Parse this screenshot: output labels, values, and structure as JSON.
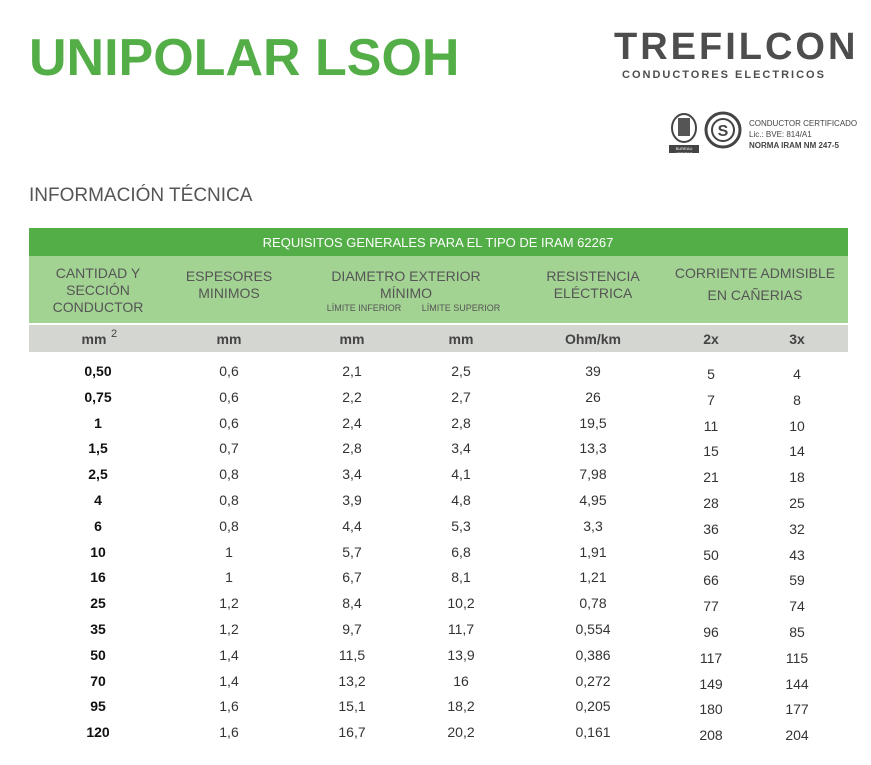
{
  "header": {
    "title": "UNIPOLAR LSOH"
  },
  "logo": {
    "brand": "TREFILCON",
    "tagline": "CONDUCTORES ELECTRICOS"
  },
  "certification": {
    "badge": "BUREAU VERITAS",
    "lines": [
      "CONDUCTOR CERTIFICADO",
      "Lic.: BVE: 814/A1",
      "NORMA IRAM NM 247-5"
    ]
  },
  "section": "INFORMACIÓN TÉCNICA",
  "table": {
    "caption": "REQUISITOS GENERALES PARA EL TIPO DE IRAM 62267",
    "headers": {
      "section": [
        "CANTIDAD Y",
        "SECCIÓN",
        "CONDUCTOR"
      ],
      "thickness": [
        "ESPESORES",
        "MINIMOS"
      ],
      "diameter": [
        "DIAMETRO EXTERIOR",
        "MÍNIMO"
      ],
      "diameter_sub": [
        "LÍMITE INFERIOR",
        "LÍMITE SUPERIOR"
      ],
      "resistance": [
        "RESISTENCIA",
        "ELÉCTRICA"
      ],
      "current": [
        "CORRIENTE ADMISIBLE",
        "EN CAÑERIAS"
      ]
    },
    "units": [
      "mm",
      "mm",
      "mm",
      "mm",
      "Ohm/km",
      "2x",
      "3x"
    ],
    "unit_superscript": "2",
    "rows": [
      [
        "0,50",
        "0,6",
        "2,1",
        "2,5",
        "39",
        "5",
        "4"
      ],
      [
        "0,75",
        "0,6",
        "2,2",
        "2,7",
        "26",
        "7",
        "8"
      ],
      [
        "1",
        "0,6",
        "2,4",
        "2,8",
        "19,5",
        "11",
        "10"
      ],
      [
        "1,5",
        "0,7",
        "2,8",
        "3,4",
        "13,3",
        "15",
        "14"
      ],
      [
        "2,5",
        "0,8",
        "3,4",
        "4,1",
        "7,98",
        "21",
        "18"
      ],
      [
        "4",
        "0,8",
        "3,9",
        "4,8",
        "4,95",
        "28",
        "25"
      ],
      [
        "6",
        "0,8",
        "4,4",
        "5,3",
        "3,3",
        "36",
        "32"
      ],
      [
        "10",
        "1",
        "5,7",
        "6,8",
        "1,91",
        "50",
        "43"
      ],
      [
        "16",
        "1",
        "6,7",
        "8,1",
        "1,21",
        "66",
        "59"
      ],
      [
        "25",
        "1,2",
        "8,4",
        "10,2",
        "0,78",
        "77",
        "74"
      ],
      [
        "35",
        "1,2",
        "9,7",
        "11,7",
        "0,554",
        "96",
        "85"
      ],
      [
        "50",
        "1,4",
        "11,5",
        "13,9",
        "0,386",
        "117",
        "115"
      ],
      [
        "70",
        "1,4",
        "13,2",
        "16",
        "0,272",
        "149",
        "144"
      ],
      [
        "95",
        "1,6",
        "15,1",
        "18,2",
        "0,205",
        "180",
        "177"
      ],
      [
        "120",
        "1,6",
        "16,7",
        "20,2",
        "0,161",
        "208",
        "204"
      ]
    ]
  }
}
